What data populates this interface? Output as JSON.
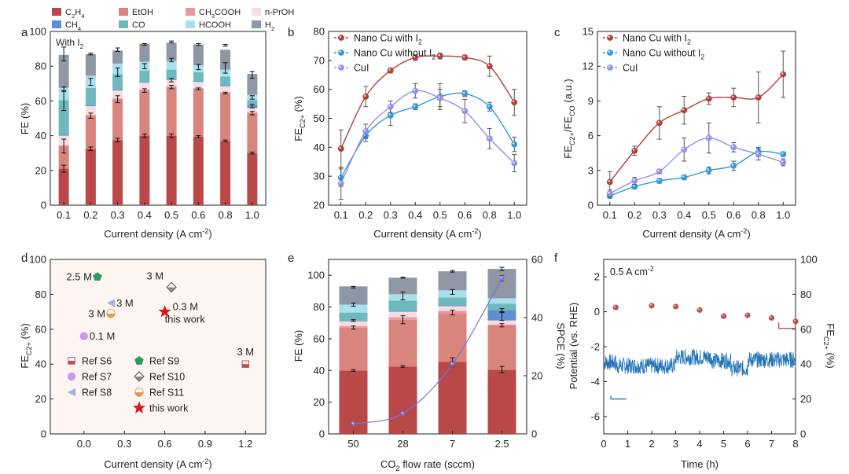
{
  "colors": {
    "C2H4": "#bb4848",
    "EtOH": "#d8857d",
    "CH3COOH": "#ec95a0",
    "nPrOH": "#f8dde0",
    "CH4": "#5f8fd3",
    "CO": "#6db9bb",
    "HCOOH": "#a9e0ee",
    "H2": "#8f97a5",
    "red_series": "#b0403b",
    "blue_series": "#2e9ad8",
    "lav_series": "#8f91e8",
    "pane_bg": "#fdf5f2"
  },
  "legend_top": {
    "items": [
      {
        "key": "C2H4",
        "label": "C",
        "sub": "2",
        "label2": "H",
        "sub2": "4"
      },
      {
        "key": "EtOH",
        "label": "EtOH"
      },
      {
        "key": "CH3COOH",
        "label": "CH",
        "sub": "3",
        "label2": "COOH"
      },
      {
        "key": "nPrOH",
        "label": "n-PrOH"
      },
      {
        "key": "CH4",
        "label": "CH",
        "sub": "4"
      },
      {
        "key": "CO",
        "label": "CO"
      },
      {
        "key": "HCOOH",
        "label": "HCOOH"
      },
      {
        "key": "H2",
        "label": "H",
        "sub": "2"
      }
    ]
  },
  "chart_data": [
    {
      "panel": "a",
      "type": "bar",
      "stacked": true,
      "annotation": "With I",
      "annotation_sub": "2",
      "categories": [
        "0.1",
        "0.2",
        "0.3",
        "0.4",
        "0.5",
        "0.6",
        "0.8",
        "1.0"
      ],
      "xlabel": "Current density (A cm",
      "xlabel_sup": "-2",
      "xlabel_tail": ")",
      "ylabel": "FE (%)",
      "ylim": [
        0,
        100
      ],
      "yticks": [
        "0",
        "20",
        "40",
        "60",
        "80",
        "100"
      ],
      "series": [
        {
          "key": "C2H4",
          "name": "C2H4",
          "values": [
            21,
            32.5,
            37.5,
            40,
            40,
            39.5,
            37,
            30
          ]
        },
        {
          "key": "EtOH",
          "name": "EtOH",
          "values": [
            13,
            19,
            23.5,
            26,
            28,
            27.5,
            27.5,
            23
          ]
        },
        {
          "key": "CH3COOH",
          "name": "CH3COOH",
          "values": [
            0.5,
            0.5,
            0.5,
            0.5,
            0.5,
            0.5,
            0.5,
            0.5
          ]
        },
        {
          "key": "nPrOH",
          "name": "n-PrOH",
          "values": [
            5.5,
            5,
            4.5,
            4,
            3.5,
            3.5,
            3.5,
            2.5
          ]
        },
        {
          "key": "CH4",
          "name": "CH4",
          "values": [
            0.5,
            0.5,
            0.5,
            0.5,
            0.5,
            0.5,
            0.5,
            1.5
          ]
        },
        {
          "key": "CO",
          "name": "CO",
          "values": [
            20,
            10,
            9,
            6.5,
            5.5,
            5,
            5,
            3
          ]
        },
        {
          "key": "HCOOH",
          "name": "HCOOH",
          "values": [
            7,
            7,
            6,
            5,
            5,
            4,
            4,
            3
          ]
        },
        {
          "key": "H2",
          "name": "H2",
          "values": [
            19,
            12.5,
            7.5,
            10.5,
            10.5,
            12,
            11.5,
            12
          ]
        }
      ],
      "errors": [
        [
          [
            21,
            2
          ],
          [
            34,
            4
          ],
          [
            60,
            5.5
          ],
          [
            67,
            1
          ],
          [
            87,
            4
          ]
        ],
        [
          [
            32.5,
            1
          ],
          [
            51.5,
            1.5
          ],
          [
            71,
            2
          ],
          [
            87,
            0.5
          ]
        ],
        [
          [
            37.5,
            1
          ],
          [
            61,
            2
          ],
          [
            76.5,
            2.5
          ],
          [
            89.5,
            1
          ]
        ],
        [
          [
            40,
            1
          ],
          [
            66,
            1
          ],
          [
            80,
            1.5
          ],
          [
            92.5,
            0.5
          ]
        ],
        [
          [
            40,
            1
          ],
          [
            68,
            1
          ],
          [
            72,
            1
          ],
          [
            83.5,
            1
          ],
          [
            94,
            0.5
          ]
        ],
        [
          [
            39.5,
            0.5
          ],
          [
            67,
            0.5
          ],
          [
            79.5,
            1.5
          ],
          [
            92.5,
            0.5
          ]
        ],
        [
          [
            37,
            0.5
          ],
          [
            64.5,
            0.5
          ],
          [
            79,
            3
          ],
          [
            92,
            0.5
          ]
        ],
        [
          [
            30,
            0.5
          ],
          [
            53,
            1
          ],
          [
            57,
            1
          ],
          [
            62,
            1
          ],
          [
            75,
            2
          ]
        ]
      ]
    },
    {
      "panel": "b",
      "type": "line",
      "x": [
        0.1,
        0.2,
        0.3,
        0.4,
        0.5,
        0.6,
        0.8,
        1.0
      ],
      "xticks": [
        "0.1",
        "0.2",
        "0.3",
        "0.4",
        "0.5",
        "0.6",
        "0.8",
        "1.0"
      ],
      "xlabel": "Current density (A cm",
      "xlabel_sup": "-2",
      "xlabel_tail": ")",
      "ylabel": "FE",
      "ylabel_sub": "C2+",
      "ylabel_tail": " (%)",
      "ylim": [
        20,
        80
      ],
      "yticks": [
        "20",
        "30",
        "40",
        "50",
        "60",
        "70",
        "80"
      ],
      "series": [
        {
          "name": "Nano Cu with I",
          "name_sub": "2",
          "color_key": "red_series",
          "values": [
            39.5,
            57.5,
            66.5,
            71,
            71.5,
            71,
            68,
            55.5
          ],
          "err": [
            6.5,
            3.5,
            0.8,
            1,
            1,
            0.8,
            3.5,
            4.5
          ]
        },
        {
          "name": "Nano Cu without I",
          "name_sub": "2",
          "color_key": "blue_series",
          "values": [
            29.5,
            44,
            51,
            54,
            57.5,
            58.5,
            54,
            41
          ],
          "err": [
            3,
            2,
            3.5,
            1,
            4.5,
            1,
            1.5,
            2.5
          ]
        },
        {
          "name": "CuI",
          "name_sub": "",
          "color_key": "lav_series",
          "values": [
            27.5,
            45.5,
            54,
            59.5,
            57,
            52.5,
            43,
            34.5
          ],
          "err": [
            5.5,
            2.5,
            2,
            2.5,
            3,
            4,
            3.5,
            3
          ]
        }
      ]
    },
    {
      "panel": "c",
      "type": "line",
      "x": [
        0.1,
        0.2,
        0.3,
        0.4,
        0.5,
        0.6,
        0.8,
        1.0
      ],
      "xticks": [
        "0.1",
        "0.2",
        "0.3",
        "0.4",
        "0.5",
        "0.6",
        "0.8",
        "1.0"
      ],
      "xlabel": "Current density (A cm",
      "xlabel_sup": "-2",
      "xlabel_tail": ")",
      "ylabel": "FE",
      "ylabel_sub": "C2+",
      "ylabel_mid": "/FE",
      "ylabel_sub2": "CO",
      "ylabel_tail": " (a.u.)",
      "ylim": [
        0,
        15
      ],
      "yticks": [
        "0",
        "3",
        "6",
        "9",
        "12",
        "15"
      ],
      "series": [
        {
          "name": "Nano Cu with I",
          "name_sub": "2",
          "color_key": "red_series",
          "values": [
            2,
            4.7,
            7.1,
            8.2,
            9.2,
            9.3,
            9.3,
            11.3
          ],
          "err": [
            0.9,
            0.4,
            1.4,
            1.2,
            0.5,
            0.8,
            2.2,
            2
          ]
        },
        {
          "name": "Nano Cu without I",
          "name_sub": "2",
          "color_key": "blue_series",
          "values": [
            0.8,
            1.6,
            2.1,
            2.4,
            3,
            3.4,
            4.6,
            4.4
          ],
          "err": [
            0.2,
            0.2,
            0.2,
            0.2,
            0.3,
            0.4,
            0.4,
            0.2
          ]
        },
        {
          "name": "CuI",
          "name_sub": "",
          "color_key": "lav_series",
          "values": [
            1,
            2.1,
            2.9,
            4.8,
            5.8,
            5,
            4.4,
            3.7
          ],
          "err": [
            0.3,
            0.3,
            0.2,
            1,
            1.3,
            0.4,
            0.5,
            0.3
          ]
        }
      ]
    },
    {
      "panel": "d",
      "type": "scatter",
      "xlabel": "Current density (A cm",
      "xlabel_sup": "-2",
      "xlabel_tail": ")",
      "ylabel": "FE",
      "ylabel_sub": "C2+",
      "ylabel_tail": " (%)",
      "xlim": [
        -0.25,
        1.35
      ],
      "ylim": [
        0,
        100
      ],
      "xticks": [
        0.0,
        0.3,
        0.6,
        0.9,
        1.2
      ],
      "xtick_labels": [
        "0.0",
        "0.3",
        "0.6",
        "0.9",
        "1.2"
      ],
      "yticks": [
        0,
        20,
        40,
        60,
        80,
        100
      ],
      "ytick_labels": [
        "0",
        "20",
        "40",
        "60",
        "80",
        "100"
      ],
      "points": [
        {
          "name": "Ref S6",
          "x": 1.2,
          "y": 40,
          "label": "3 M",
          "marker": "square"
        },
        {
          "name": "Ref S7",
          "x": 0.0,
          "y": 56,
          "label": "0.1 M",
          "marker": "circle"
        },
        {
          "name": "Ref S8",
          "x": 0.2,
          "y": 75,
          "label": "3 M",
          "marker": "triangle"
        },
        {
          "name": "Ref S9",
          "x": 0.1,
          "y": 90,
          "label": "2.5 M",
          "marker": "pentagon"
        },
        {
          "name": "Ref S10",
          "x": 0.65,
          "y": 84,
          "label": "3 M",
          "marker": "diamond"
        },
        {
          "name": "Ref S11",
          "x": 0.2,
          "y": 69,
          "label": "3 M",
          "marker": "halfcircle"
        },
        {
          "name": "this work",
          "x": 0.6,
          "y": 70,
          "label": "0.3 M",
          "label2": "this work",
          "marker": "star"
        }
      ]
    },
    {
      "panel": "e",
      "type": "bar",
      "stacked": true,
      "categories": [
        "50",
        "28",
        "7",
        "2.5"
      ],
      "xlabel": "CO",
      "xlabel_sub": "2",
      "xlabel_tail": " flow rate (sccm)",
      "ylabel": "FE (%)",
      "ylim": [
        0,
        110
      ],
      "yticks": [
        "0",
        "20",
        "40",
        "60",
        "80",
        "100"
      ],
      "y2label": "SPCE (%)",
      "y2lim": [
        0,
        60
      ],
      "y2ticks": [
        "0",
        "20",
        "40",
        "60"
      ],
      "series": [
        {
          "key": "C2H4",
          "name": "C2H4",
          "values": [
            40,
            42.5,
            45.5,
            40.5
          ]
        },
        {
          "key": "EtOH",
          "name": "EtOH",
          "values": [
            27,
            29.5,
            30.5,
            28
          ]
        },
        {
          "key": "CH3COOH",
          "name": "CH3COOH",
          "values": [
            1,
            1.5,
            1.5,
            0.5
          ]
        },
        {
          "key": "nPrOH",
          "name": "n-PrOH",
          "values": [
            3,
            3.5,
            3,
            2.5
          ]
        },
        {
          "key": "CH4",
          "name": "CH4",
          "values": [
            0.5,
            0.5,
            0.5,
            6.5
          ]
        },
        {
          "key": "CO",
          "name": "CO",
          "values": [
            5,
            6.5,
            5,
            4
          ]
        },
        {
          "key": "HCOOH",
          "name": "HCOOH",
          "values": [
            5,
            4,
            4.5,
            3.5
          ]
        },
        {
          "key": "H2",
          "name": "H2",
          "values": [
            11.5,
            10.5,
            12,
            18.5
          ]
        }
      ],
      "spce": {
        "values": [
          3.5,
          7,
          24,
          53.5
        ],
        "err": [
          0.3,
          0.3,
          1,
          1
        ]
      },
      "errors": [
        [
          [
            40,
            0.5
          ],
          [
            67,
            1
          ],
          [
            71.5,
            0.5
          ],
          [
            81.5,
            1
          ],
          [
            92.5,
            0.5
          ]
        ],
        [
          [
            42.5,
            0.5
          ],
          [
            72,
            2.5
          ],
          [
            87,
            2.5
          ],
          [
            98.5,
            0.3
          ]
        ],
        [
          [
            45.5,
            2.5
          ],
          [
            76.5,
            1.5
          ],
          [
            89.5,
            1.5
          ],
          [
            102.5,
            0.5
          ]
        ],
        [
          [
            40.5,
            2
          ],
          [
            68.5,
            1
          ],
          [
            74,
            2.5
          ],
          [
            78,
            1
          ],
          [
            104,
            1
          ]
        ]
      ]
    },
    {
      "panel": "f",
      "type": "line",
      "annotation": "0.5 A cm",
      "annotation_sup": "-2",
      "xlabel": "Time (h)",
      "xlim": [
        0,
        8
      ],
      "xticks": [
        "0",
        "1",
        "2",
        "3",
        "4",
        "5",
        "6",
        "7",
        "8"
      ],
      "ylabel": "Potential (vs. RHE)",
      "ylim": [
        -7,
        3
      ],
      "yticks": [
        "-6",
        "-4",
        "-2",
        "0",
        "2"
      ],
      "y2label": "FE",
      "y2label_sub": "C2+",
      "y2label_tail": " (%)",
      "y2lim": [
        0,
        100
      ],
      "y2ticks": [
        "0",
        "20",
        "40",
        "60",
        "80",
        "100"
      ],
      "potential_segments": [
        [
          0,
          0.5,
          -2.9
        ],
        [
          0.5,
          3.0,
          -3.1
        ],
        [
          3.0,
          4.5,
          -2.6
        ],
        [
          4.5,
          5.3,
          -2.8
        ],
        [
          5.3,
          6.0,
          -3.25
        ],
        [
          6.0,
          8.0,
          -2.75
        ]
      ],
      "fe": {
        "x": [
          0.5,
          2,
          3,
          4,
          5,
          6,
          7,
          8
        ],
        "y": [
          72.5,
          73.5,
          73,
          71,
          67.5,
          68,
          66.5,
          64.5
        ]
      }
    }
  ],
  "panel_labels": [
    "a",
    "b",
    "c",
    "d",
    "e",
    "f"
  ]
}
